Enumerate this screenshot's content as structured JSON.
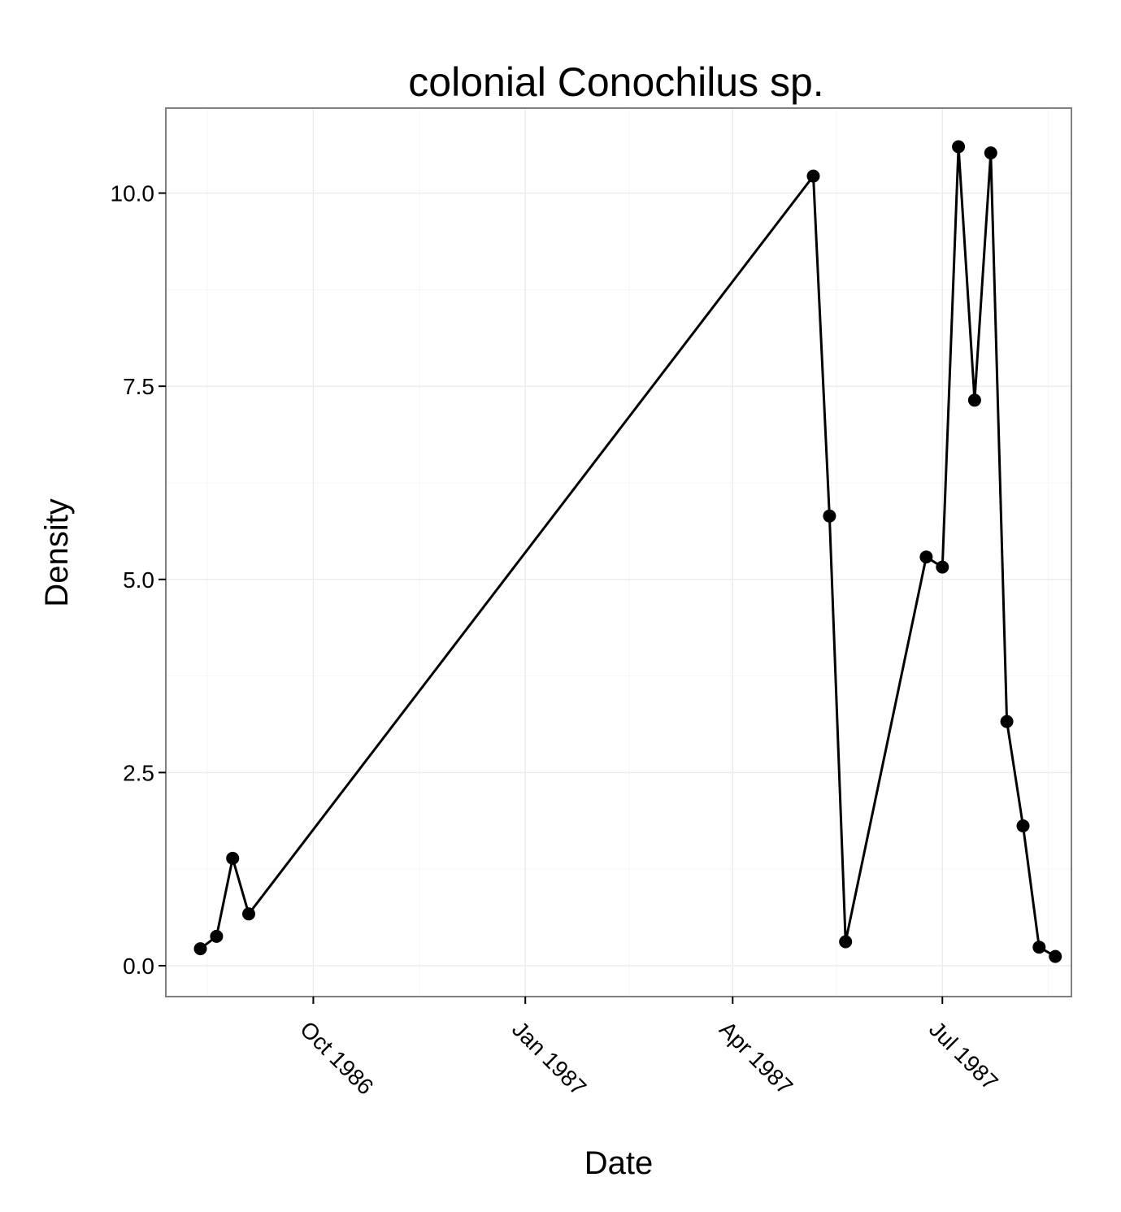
{
  "chart_data": {
    "type": "line",
    "title": "colonial Conochilus sp.",
    "xlabel": "Date",
    "ylabel": "Density",
    "x_tick_labels": [
      "Oct 1986",
      "Jan 1987",
      "Apr 1987",
      "Jul 1987"
    ],
    "y_tick_labels": [
      "0.0",
      "2.5",
      "5.0",
      "7.5",
      "10.0"
    ],
    "ylim": [
      -0.4,
      11.1
    ],
    "grid": true,
    "series": [
      {
        "points": [
          {
            "x": "1986-08-13",
            "y": 0.22
          },
          {
            "x": "1986-08-20",
            "y": 0.38
          },
          {
            "x": "1986-08-27",
            "y": 1.39
          },
          {
            "x": "1986-09-03",
            "y": 0.67
          },
          {
            "x": "1987-05-06",
            "y": 10.22
          },
          {
            "x": "1987-05-13",
            "y": 5.82
          },
          {
            "x": "1987-05-20",
            "y": 0.31
          },
          {
            "x": "1987-06-24",
            "y": 5.29
          },
          {
            "x": "1987-07-01",
            "y": 5.16
          },
          {
            "x": "1987-07-08",
            "y": 10.6
          },
          {
            "x": "1987-07-15",
            "y": 7.32
          },
          {
            "x": "1987-07-22",
            "y": 10.52
          },
          {
            "x": "1987-07-29",
            "y": 3.16
          },
          {
            "x": "1987-08-05",
            "y": 1.81
          },
          {
            "x": "1987-08-12",
            "y": 0.24
          },
          {
            "x": "1987-08-19",
            "y": 0.12
          }
        ]
      }
    ]
  }
}
